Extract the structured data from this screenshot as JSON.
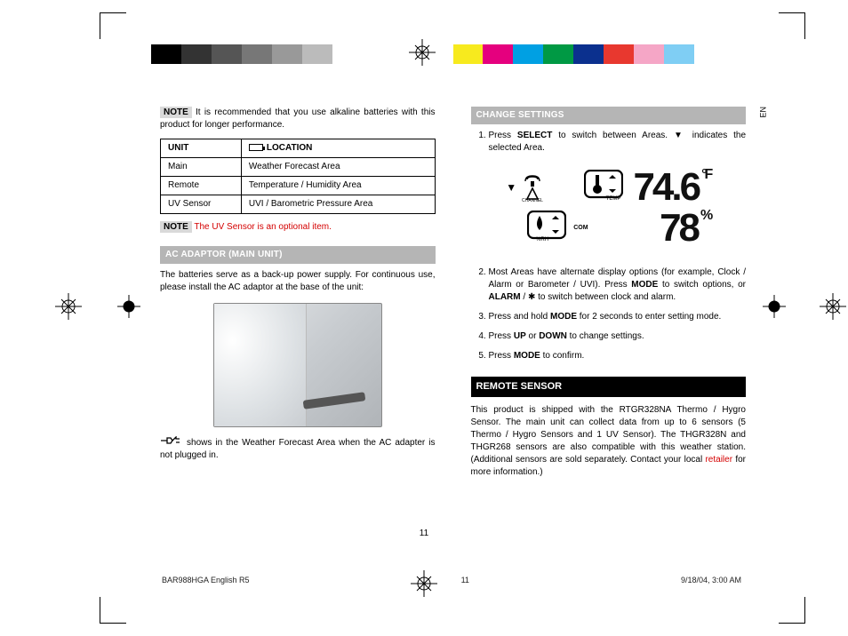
{
  "colorbar": [
    "#000000",
    "#333333",
    "#555555",
    "#777777",
    "#999999",
    "#bbbbbb",
    "#ffffff",
    "#ffffff",
    "#ffffff",
    "#ffffff",
    "#f7ea1e",
    "#e5007e",
    "#00a0e3",
    "#009944",
    "#0b308e",
    "#e8382f",
    "#f5a6c6",
    "#7fcef4",
    "#ffffff",
    "#ffffff"
  ],
  "left": {
    "note1_tag": "NOTE",
    "note1_text": " It is recommended that you use alkaline batteries with this product for longer performance.",
    "table": {
      "head_unit": "UNIT",
      "head_loc": "LOCATION",
      "rows": [
        {
          "unit": "Main",
          "loc": "Weather Forecast Area"
        },
        {
          "unit": "Remote",
          "loc": "Temperature / Humidity Area"
        },
        {
          "unit": "UV Sensor",
          "loc": "UVI / Barometric Pressure Area"
        }
      ]
    },
    "note2_tag": "NOTE",
    "note2_text": " The UV Sensor is an optional item.",
    "sec1": "AC ADAPTOR (MAIN UNIT)",
    "sec1_text": "The batteries serve as a back-up power supply. For continuous use, please install the AC adaptor at the base of the unit:",
    "plug_text": " shows in the Weather Forecast Area when the AC adapter is not plugged in."
  },
  "right": {
    "sec_change": "CHANGE SETTINGS",
    "step1a": "Press ",
    "step1b": "SELECT",
    "step1c": " to switch between Areas. ",
    "step1d": " indicates the selected Area.",
    "lcd": {
      "temp": "74.6",
      "temp_unit": "°F",
      "hum": "78",
      "hum_unit": "%",
      "channel_label": "CHANNEL",
      "temp_label": "TEMP",
      "rh_label": "%RH",
      "com_label": "COM"
    },
    "step2a": "Most Areas have alternate display options (for example, Clock / Alarm or Barometer / UVI). Press ",
    "step2b": "MODE",
    "step2c": " to switch options, or ",
    "step2d": "ALARM",
    "step2e": " / ✱ to switch between clock and alarm.",
    "step3a": "Press and hold ",
    "step3b": "MODE",
    "step3c": " for 2 seconds to enter setting mode.",
    "step4a": "Press ",
    "step4b": "UP",
    "step4c": " or ",
    "step4d": "DOWN",
    "step4e": " to change settings.",
    "step5a": "Press ",
    "step5b": "MODE",
    "step5c": " to confirm.",
    "sec_remote": "REMOTE SENSOR",
    "remote_a": "This product is shipped with the RTGR328NA Thermo / Hygro Sensor. The main unit can collect data from up to 6 sensors (5 Thermo / Hygro Sensors and 1 UV Sensor). The THGR328N and THGR268 sensors are also compatible with this weather station. (Additional sensors are sold separately. Contact your local ",
    "remote_link": "retailer",
    "remote_b": " for more information.)"
  },
  "en_label": "EN",
  "page_num": "11",
  "footer": {
    "left": "BAR988HGA English R5",
    "mid": "11",
    "right": "9/18/04, 3:00 AM"
  }
}
